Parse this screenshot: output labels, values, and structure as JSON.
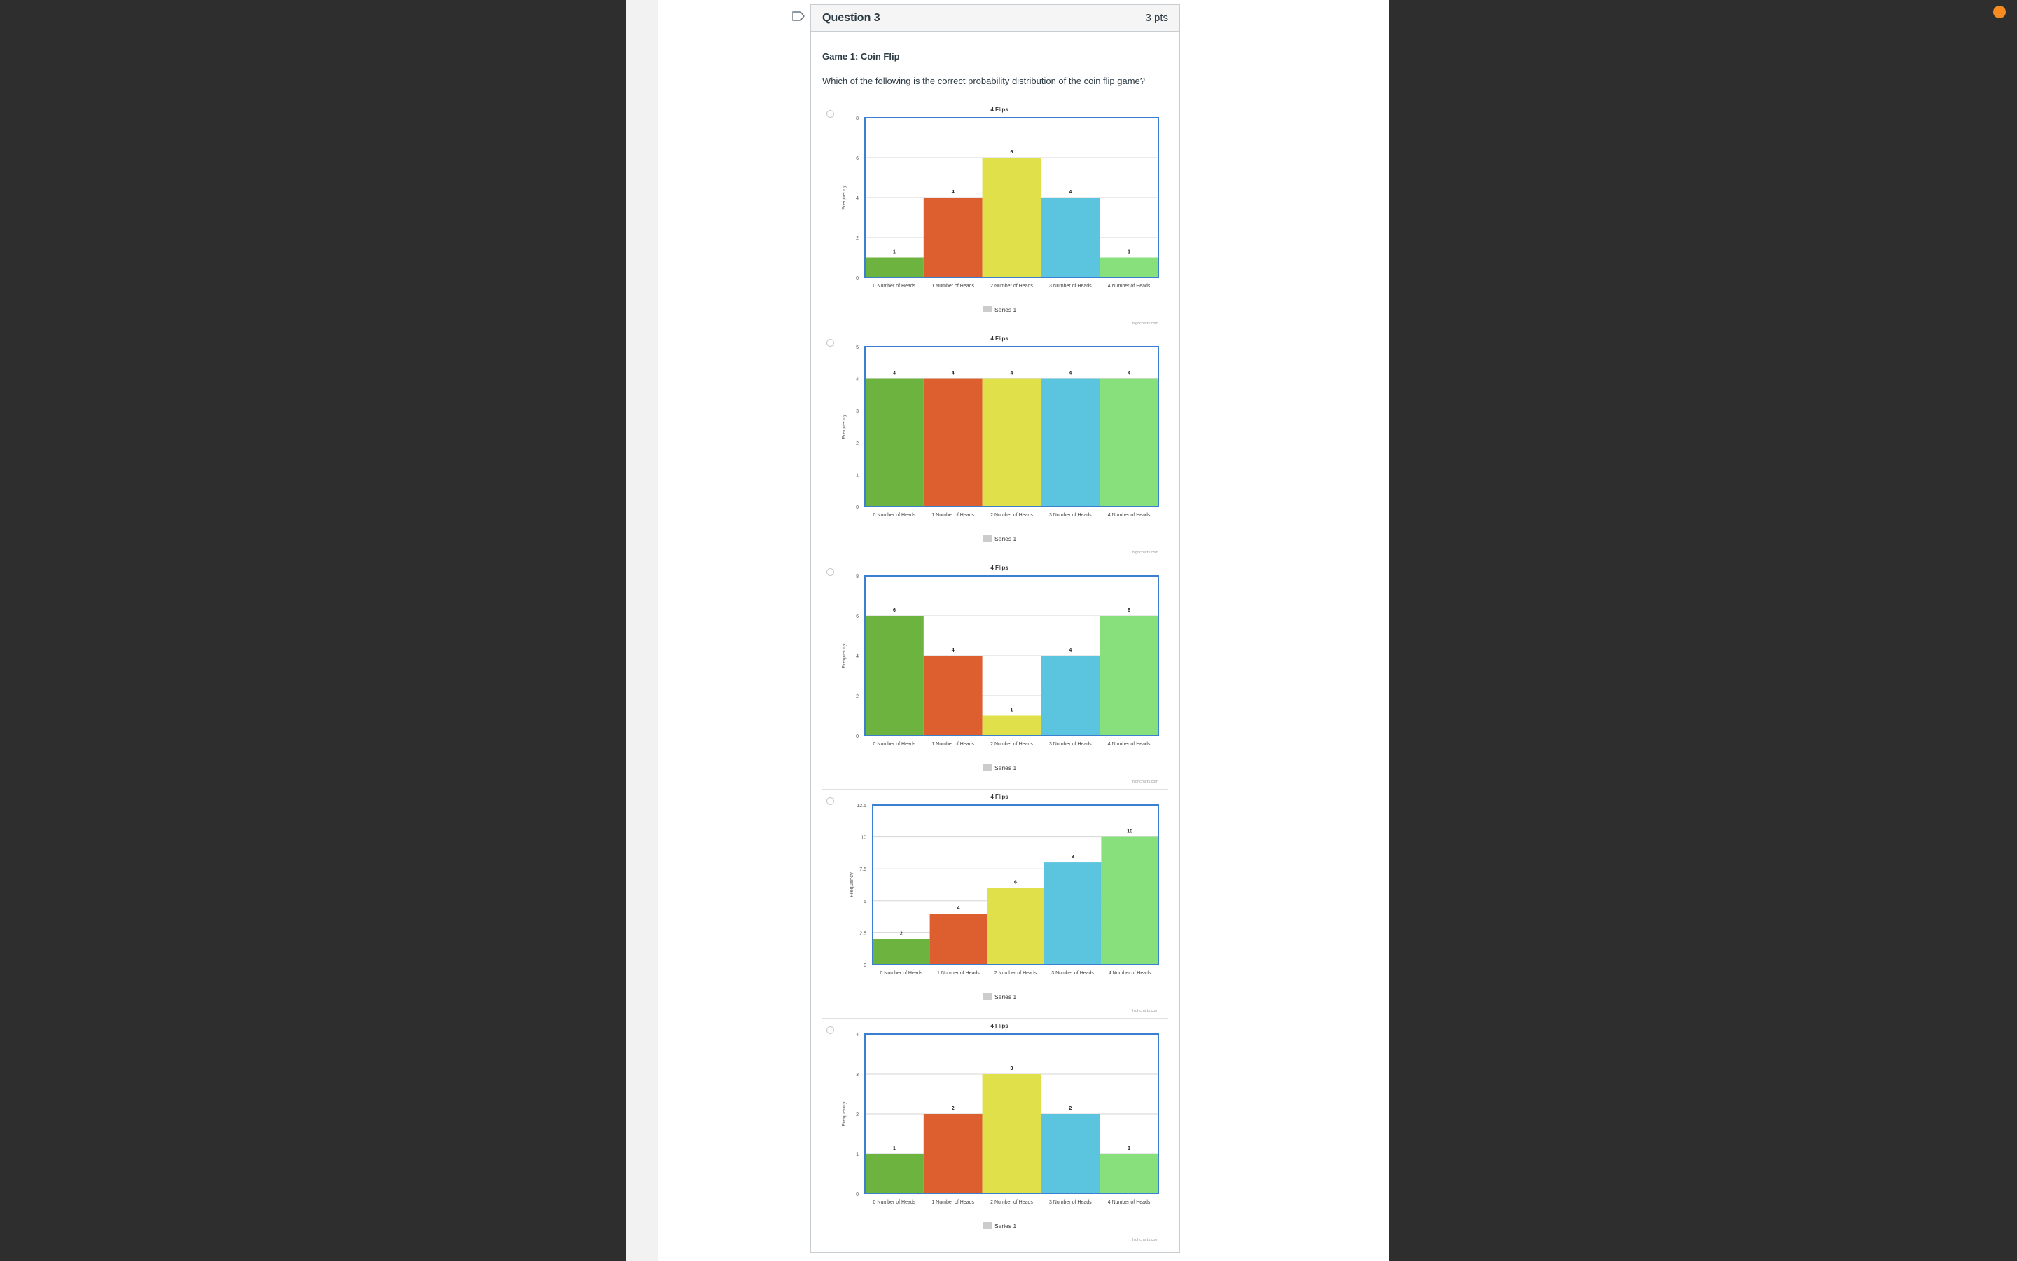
{
  "question": {
    "title": "Question 3",
    "points": "3 pts",
    "game_title": "Game 1: Coin Flip",
    "text": "Which of the following is the correct probability distribution of the coin flip game?"
  },
  "colors": {
    "bars": [
      "#6db33f",
      "#dd5f2f",
      "#dfe04a",
      "#5bc5e0",
      "#88e07c"
    ],
    "plot_border": "#3a7fd0",
    "accent_dot": "#f68b1f"
  },
  "icons": {
    "flag": "flag-icon"
  },
  "chart_data": [
    {
      "type": "bar",
      "title": "4 Flips",
      "ylabel": "Frequency",
      "categories": [
        "0 Number of Heads",
        "1 Number of Heads",
        "2 Number of Heads",
        "3 Number of Heads",
        "4 Number of Heads"
      ],
      "series": [
        {
          "name": "Series 1",
          "values": [
            1,
            4,
            6,
            4,
            1
          ]
        }
      ],
      "ylim": [
        0,
        8
      ],
      "yticks": [
        "0",
        "2",
        "4",
        "6",
        "8"
      ],
      "credit": "highcharts.com"
    },
    {
      "type": "bar",
      "title": "4 Flips",
      "ylabel": "Frequency",
      "categories": [
        "0 Number of Heads",
        "1 Number of Heads",
        "2 Number of Heads",
        "3 Number of Heads",
        "4 Number of Heads"
      ],
      "series": [
        {
          "name": "Series 1",
          "values": [
            4,
            4,
            4,
            4,
            4
          ]
        }
      ],
      "ylim": [
        0,
        5
      ],
      "yticks": [
        "0",
        "1",
        "2",
        "3",
        "4",
        "5"
      ],
      "credit": "highcharts.com"
    },
    {
      "type": "bar",
      "title": "4 Flips",
      "ylabel": "Frequency",
      "categories": [
        "0 Number of Heads",
        "1 Number of Heads",
        "2 Number of Heads",
        "3 Number of Heads",
        "4 Number of Heads"
      ],
      "series": [
        {
          "name": "Series 1",
          "values": [
            6,
            4,
            1,
            4,
            6
          ]
        }
      ],
      "ylim": [
        0,
        8
      ],
      "yticks": [
        "0",
        "2",
        "4",
        "6",
        "8"
      ],
      "credit": "highcharts.com"
    },
    {
      "type": "bar",
      "title": "4 Flips",
      "ylabel": "Frequency",
      "categories": [
        "0 Number of Heads",
        "1 Number of Heads",
        "2 Number of Heads",
        "3 Number of Heads",
        "4 Number of Heads"
      ],
      "series": [
        {
          "name": "Series 1",
          "values": [
            2,
            4,
            6,
            8,
            10
          ]
        }
      ],
      "ylim": [
        0,
        12.5
      ],
      "yticks": [
        "0",
        "2.5",
        "5",
        "7.5",
        "10",
        "12.5"
      ],
      "credit": "highcharts.com"
    },
    {
      "type": "bar",
      "title": "4 Flips",
      "ylabel": "Frequency",
      "categories": [
        "0 Number of Heads",
        "1 Number of Heads",
        "2 Number of Heads",
        "3 Number of Heads",
        "4 Number of Heads"
      ],
      "series": [
        {
          "name": "Series 1",
          "values": [
            1,
            2,
            3,
            2,
            1
          ]
        }
      ],
      "ylim": [
        0,
        4
      ],
      "yticks": [
        "0",
        "1",
        "2",
        "3",
        "4"
      ],
      "credit": "highcharts.com"
    }
  ]
}
